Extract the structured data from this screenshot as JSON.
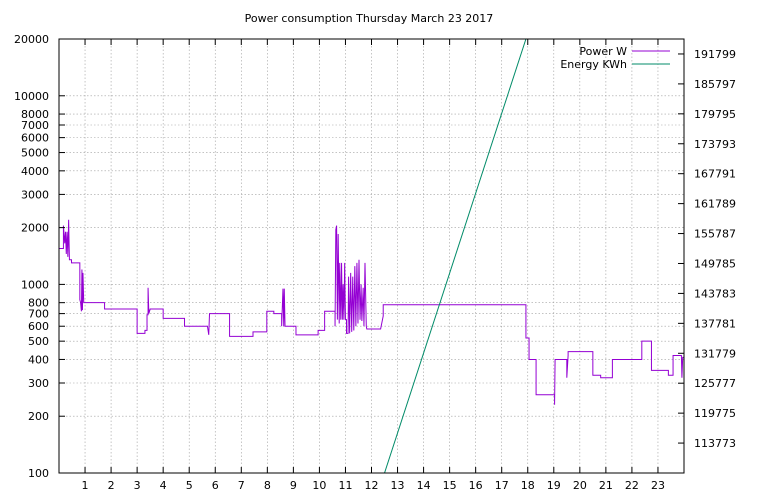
{
  "chart_data": {
    "type": "line",
    "title": "Power consumption Thursday March 23 2017",
    "xlabel": "",
    "ylabel": "",
    "xlim": [
      0,
      24
    ],
    "ylim": [
      100,
      20000
    ],
    "y_scale": "log",
    "y2lim": [
      107771,
      194800
    ],
    "grid": true,
    "legend_position": "top-right",
    "x_ticks": [
      "1",
      "2",
      "3",
      "4",
      "5",
      "6",
      "7",
      "8",
      "9",
      "10",
      "11",
      "12",
      "13",
      "14",
      "15",
      "16",
      "17",
      "18",
      "19",
      "20",
      "21",
      "22",
      "23"
    ],
    "y_ticks": [
      {
        "value": 100,
        "label": "100"
      },
      {
        "value": 200,
        "label": "200"
      },
      {
        "value": 300,
        "label": "300"
      },
      {
        "value": 400,
        "label": "400"
      },
      {
        "value": 500,
        "label": "500"
      },
      {
        "value": 600,
        "label": "600"
      },
      {
        "value": 700,
        "label": "700"
      },
      {
        "value": 800,
        "label": "800"
      },
      {
        "value": 1000,
        "label": "1000"
      },
      {
        "value": 2000,
        "label": "2000"
      },
      {
        "value": 3000,
        "label": "3000"
      },
      {
        "value": 4000,
        "label": "4000"
      },
      {
        "value": 5000,
        "label": "5000"
      },
      {
        "value": 6000,
        "label": "6000"
      },
      {
        "value": 7000,
        "label": "7000"
      },
      {
        "value": 8000,
        "label": "8000"
      },
      {
        "value": 10000,
        "label": "10000"
      },
      {
        "value": 20000,
        "label": "20000"
      }
    ],
    "y2_ticks": [
      "113773",
      "119775",
      "125777",
      "131779",
      "137781",
      "143783",
      "149785",
      "155787",
      "161789",
      "167791",
      "173793",
      "179795",
      "185797",
      "191799"
    ],
    "series": [
      {
        "name": "Power W",
        "color": "#9400d3",
        "axis": "y",
        "points": [
          [
            0.0,
            1550
          ],
          [
            0.17,
            1550
          ],
          [
            0.17,
            2050
          ],
          [
            0.22,
            1650
          ],
          [
            0.25,
            1900
          ],
          [
            0.28,
            1450
          ],
          [
            0.31,
            1900
          ],
          [
            0.34,
            1400
          ],
          [
            0.37,
            2200
          ],
          [
            0.4,
            1350
          ],
          [
            0.48,
            1350
          ],
          [
            0.48,
            1300
          ],
          [
            0.8,
            1300
          ],
          [
            0.8,
            830
          ],
          [
            0.83,
            800
          ],
          [
            0.86,
            720
          ],
          [
            0.88,
            1200
          ],
          [
            0.9,
            730
          ],
          [
            0.92,
            1150
          ],
          [
            0.95,
            800
          ],
          [
            1.75,
            800
          ],
          [
            1.75,
            740
          ],
          [
            3.0,
            740
          ],
          [
            3.0,
            550
          ],
          [
            3.3,
            550
          ],
          [
            3.3,
            570
          ],
          [
            3.38,
            570
          ],
          [
            3.38,
            690
          ],
          [
            3.42,
            690
          ],
          [
            3.42,
            960
          ],
          [
            3.45,
            700
          ],
          [
            3.5,
            740
          ],
          [
            4.0,
            740
          ],
          [
            4.0,
            660
          ],
          [
            4.82,
            660
          ],
          [
            4.82,
            600
          ],
          [
            5.7,
            600
          ],
          [
            5.75,
            540
          ],
          [
            5.78,
            700
          ],
          [
            6.55,
            700
          ],
          [
            6.55,
            530
          ],
          [
            7.45,
            530
          ],
          [
            7.45,
            560
          ],
          [
            7.98,
            560
          ],
          [
            7.98,
            720
          ],
          [
            8.25,
            720
          ],
          [
            8.25,
            700
          ],
          [
            8.55,
            700
          ],
          [
            8.55,
            600
          ],
          [
            8.6,
            950
          ],
          [
            8.63,
            600
          ],
          [
            8.65,
            950
          ],
          [
            8.68,
            600
          ],
          [
            9.1,
            600
          ],
          [
            9.1,
            540
          ],
          [
            9.95,
            540
          ],
          [
            9.95,
            570
          ],
          [
            10.2,
            570
          ],
          [
            10.2,
            720
          ],
          [
            10.6,
            720
          ],
          [
            10.6,
            600
          ],
          [
            10.63,
            1950
          ],
          [
            10.66,
            2050
          ],
          [
            10.69,
            650
          ],
          [
            10.72,
            1850
          ],
          [
            10.76,
            620
          ],
          [
            10.78,
            1300
          ],
          [
            10.82,
            650
          ],
          [
            10.85,
            1300
          ],
          [
            10.88,
            650
          ],
          [
            10.91,
            1000
          ],
          [
            10.94,
            650
          ],
          [
            10.97,
            1300
          ],
          [
            11.0,
            650
          ],
          [
            11.04,
            650
          ],
          [
            11.04,
            550
          ],
          [
            11.1,
            550
          ],
          [
            11.12,
            1100
          ],
          [
            11.16,
            550
          ],
          [
            11.2,
            1150
          ],
          [
            11.24,
            560
          ],
          [
            11.28,
            1100
          ],
          [
            11.32,
            570
          ],
          [
            11.36,
            1250
          ],
          [
            11.4,
            600
          ],
          [
            11.44,
            1300
          ],
          [
            11.48,
            620
          ],
          [
            11.52,
            1350
          ],
          [
            11.56,
            650
          ],
          [
            11.6,
            1000
          ],
          [
            11.63,
            640
          ],
          [
            11.68,
            960
          ],
          [
            11.71,
            600
          ],
          [
            11.75,
            1300
          ],
          [
            11.8,
            600
          ],
          [
            11.82,
            580
          ],
          [
            12.35,
            580
          ],
          [
            12.45,
            680
          ],
          [
            12.45,
            780
          ],
          [
            17.93,
            780
          ],
          [
            17.93,
            520
          ],
          [
            18.05,
            520
          ],
          [
            18.05,
            400
          ],
          [
            18.32,
            400
          ],
          [
            18.32,
            360
          ],
          [
            18.32,
            260
          ],
          [
            19.03,
            260
          ],
          [
            19.03,
            230
          ],
          [
            19.05,
            400
          ],
          [
            19.5,
            400
          ],
          [
            19.5,
            320
          ],
          [
            19.55,
            420
          ],
          [
            19.55,
            440
          ],
          [
            20.5,
            440
          ],
          [
            20.5,
            330
          ],
          [
            20.8,
            330
          ],
          [
            20.8,
            320
          ],
          [
            21.25,
            320
          ],
          [
            21.25,
            400
          ],
          [
            22.38,
            400
          ],
          [
            22.38,
            500
          ],
          [
            22.75,
            500
          ],
          [
            22.75,
            350
          ],
          [
            23.4,
            350
          ],
          [
            23.4,
            330
          ],
          [
            23.58,
            330
          ],
          [
            23.58,
            420
          ],
          [
            23.9,
            420
          ],
          [
            23.92,
            320
          ],
          [
            23.95,
            410
          ],
          [
            24.0,
            410
          ]
        ]
      },
      {
        "name": "Energy KWh",
        "color": "#008b68",
        "axis": "y2",
        "points": [
          [
            12.5,
            107771
          ],
          [
            17.93,
            194800
          ]
        ]
      }
    ]
  }
}
